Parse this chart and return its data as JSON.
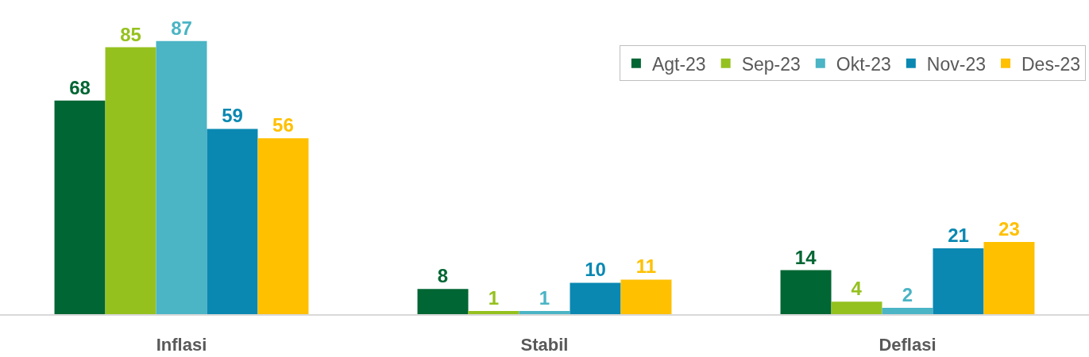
{
  "chart_data": {
    "type": "bar",
    "categories": [
      "Inflasi",
      "Stabil",
      "Deflasi"
    ],
    "series": [
      {
        "name": "Agt-23",
        "color": "#006633",
        "values": [
          68,
          8,
          14
        ]
      },
      {
        "name": "Sep-23",
        "color": "#95c11f",
        "values": [
          85,
          1,
          4
        ]
      },
      {
        "name": "Okt-23",
        "color": "#4bb4c5",
        "values": [
          87,
          1,
          2
        ]
      },
      {
        "name": "Nov-23",
        "color": "#0a88b2",
        "values": [
          59,
          10,
          21
        ]
      },
      {
        "name": "Des-23",
        "color": "#ffc000",
        "values": [
          56,
          11,
          23
        ]
      }
    ],
    "data_labels": true,
    "legend": "top right"
  }
}
